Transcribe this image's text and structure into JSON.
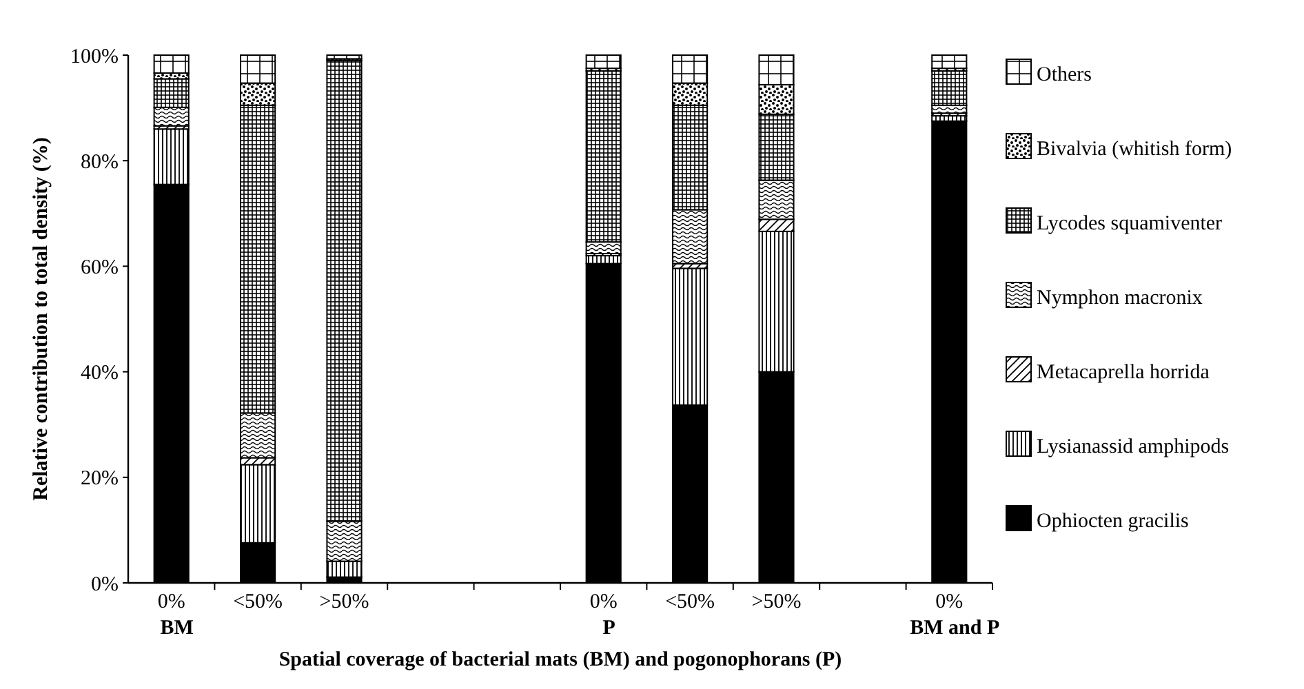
{
  "chart_data": {
    "type": "bar",
    "stacked": true,
    "xlabel": "Spatial coverage of bacterial mats (BM) and pogonophorans (P)",
    "ylabel": "Relative contribution to total density (%)",
    "categories": [
      "0%\nBM",
      "<50%",
      ">50%",
      null,
      null,
      "0%\nP",
      "<50%",
      ">50%",
      null,
      "0%\nBM and P"
    ],
    "ylim": [
      0,
      100
    ],
    "yticks": [
      {
        "value": 0,
        "label": "0%"
      },
      {
        "value": 20,
        "label": "20%"
      },
      {
        "value": 40,
        "label": "40%"
      },
      {
        "value": 60,
        "label": "60%"
      },
      {
        "value": 80,
        "label": "80%"
      },
      {
        "value": 100,
        "label": "100%"
      }
    ],
    "legend": "right",
    "series": [
      {
        "name": "Ophiocten gracilis",
        "color": "#000000",
        "values": [
          75.5,
          7.6,
          1.1,
          null,
          null,
          60.5,
          33.7,
          40.0,
          null,
          87.5
        ]
      },
      {
        "name": "Lysianassid amphipods",
        "color": "#000000",
        "values": [
          10.5,
          14.8,
          3.0,
          null,
          null,
          1.5,
          25.9,
          26.6,
          null,
          1.0
        ]
      },
      {
        "name": "Metacaprella horrida",
        "color": "#000000",
        "values": [
          0.6,
          1.3,
          null,
          null,
          null,
          0.4,
          0.9,
          2.3,
          null,
          0.5
        ]
      },
      {
        "name": "Nymphon macronix",
        "color": "#000000",
        "values": [
          3.5,
          8.5,
          7.6,
          null,
          null,
          2.2,
          10.2,
          7.4,
          null,
          1.5
        ]
      },
      {
        "name": "Lycodes squamiventer",
        "color": "#000000",
        "values": [
          5.4,
          58.3,
          87.3,
          null,
          null,
          32.4,
          19.8,
          12.5,
          null,
          6.5
        ]
      },
      {
        "name": "Bivalvia (whitish form)",
        "color": "#000000",
        "values": [
          1.1,
          4.2,
          0.3,
          null,
          null,
          0.5,
          4.2,
          5.6,
          null,
          0.5
        ]
      },
      {
        "name": "Others",
        "color": "#000000",
        "values": [
          3.4,
          5.3,
          0.7,
          null,
          null,
          2.5,
          5.3,
          5.6,
          null,
          2.5
        ]
      }
    ]
  }
}
